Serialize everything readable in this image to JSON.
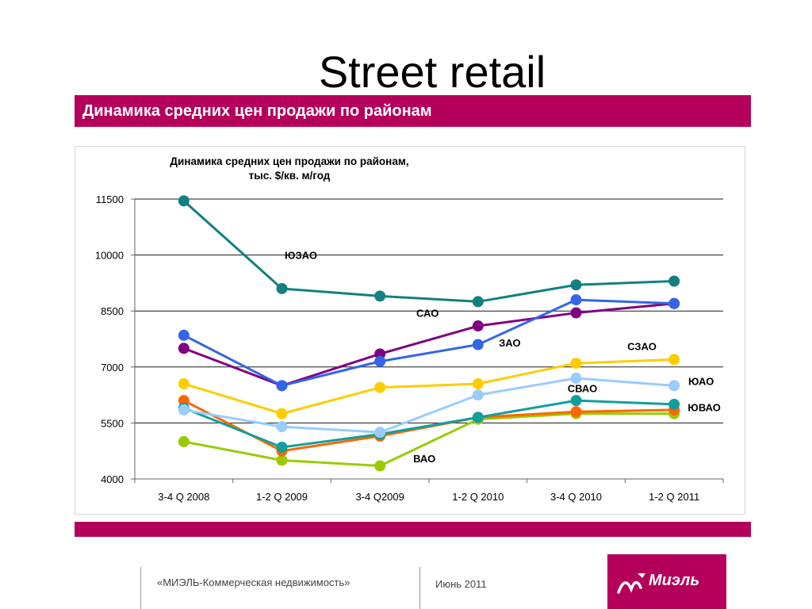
{
  "slide": {
    "title": "Street retail",
    "subtitle": "Динамика средних цен продажи по районам"
  },
  "footer": {
    "company": "«МИЭЛЬ-Коммерческая недвижимость»",
    "date": "Июнь 2011",
    "logo_text": "Миэль"
  },
  "colors": {
    "accent": "#b5005b"
  },
  "chart_data": {
    "type": "line",
    "title_line1": "Динамика средних цен продажи по районам,",
    "title_line2": "тыс. $/кв. м/год",
    "categories": [
      "3-4 Q 2008",
      "1-2 Q 2009",
      "3-4 Q2009",
      "1-2 Q 2010",
      "3-4 Q 2010",
      "1-2 Q 2011"
    ],
    "ylim": [
      4000,
      11500
    ],
    "yticks": [
      "11500",
      "10000",
      "8500",
      "7000",
      "5500",
      "4000"
    ],
    "ytick_values": [
      11500,
      10000,
      8500,
      7000,
      5500,
      4000
    ],
    "grid": true,
    "series": [
      {
        "name": "ЮЗАО",
        "color": "#138080",
        "values": [
          11450,
          9100,
          8900,
          8750,
          9200,
          9300
        ]
      },
      {
        "name": "САО",
        "color": "#800080",
        "values": [
          7500,
          6500,
          7350,
          8100,
          8450,
          8700
        ]
      },
      {
        "name": "ЗАО",
        "color": "#3366e6",
        "values": [
          7850,
          6500,
          7150,
          7600,
          8800,
          8700
        ]
      },
      {
        "name": "СЗАО",
        "color": "#ffcc00",
        "values": [
          6550,
          5750,
          6450,
          6550,
          7100,
          7200
        ]
      },
      {
        "name": "ЮАО",
        "color": "#99ccff",
        "values": [
          5850,
          5400,
          5250,
          6250,
          6700,
          6500
        ]
      },
      {
        "name": "СВАО",
        "color": "#139e9e",
        "values": [
          5900,
          4850,
          5200,
          5650,
          6100,
          6000
        ]
      },
      {
        "name": "ЮВАО",
        "color": "#ff6600",
        "values": [
          6100,
          4750,
          5150,
          5650,
          5800,
          5850
        ]
      },
      {
        "name": "ВАО",
        "color": "#99cc00",
        "values": [
          5000,
          4500,
          4350,
          5600,
          5750,
          5750
        ]
      }
    ]
  }
}
